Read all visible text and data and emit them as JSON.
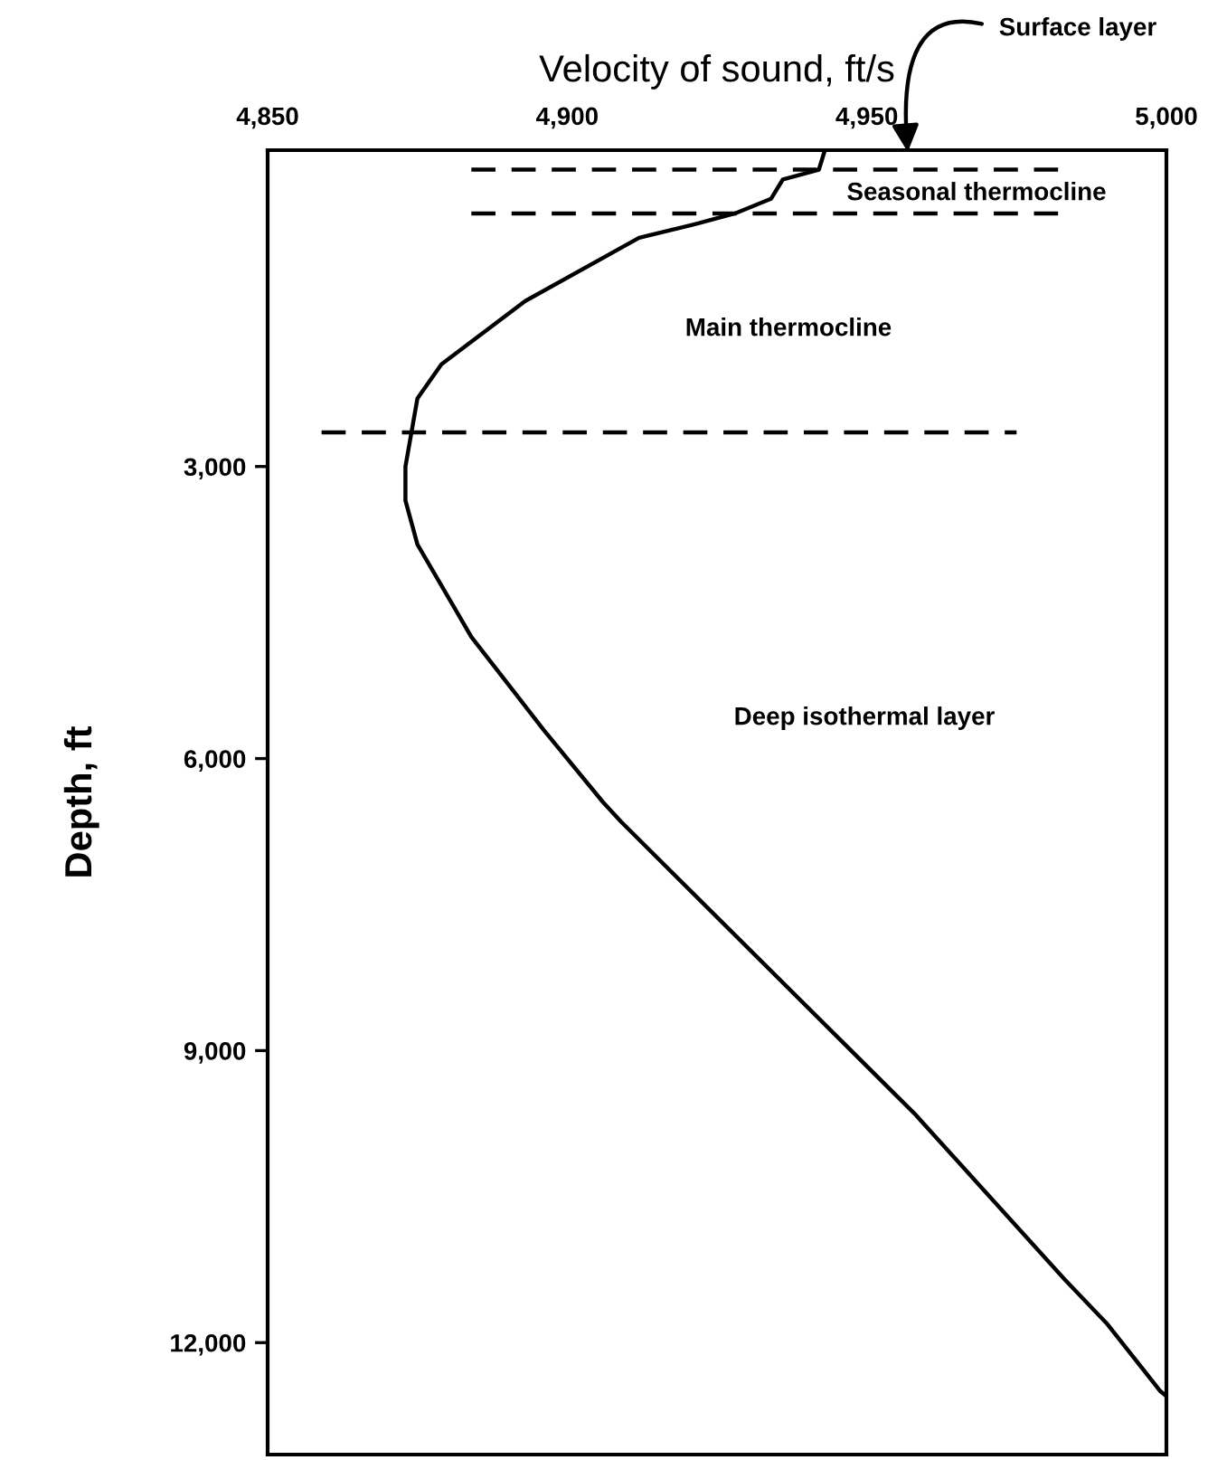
{
  "chart_data": {
    "type": "line",
    "xlabel": "Velocity of sound, ft/s",
    "ylabel": "Depth, ft",
    "series": [
      {
        "color": "#000000",
        "line_style": "solid",
        "x": [
          4943,
          4942,
          4936,
          4934,
          4928,
          4922,
          4912,
          4893,
          4879,
          4875,
          4873,
          4873,
          4875,
          4884,
          4896,
          4906,
          4909,
          4958,
          4983,
          4990,
          4999,
          5000
        ],
        "values": [
          -250,
          -50,
          50,
          250,
          400,
          500,
          650,
          1300,
          1950,
          2300,
          3000,
          3350,
          3800,
          4750,
          5700,
          6450,
          6650,
          9650,
          11350,
          11800,
          12500,
          12550
        ]
      },
      {
        "color": "#000000",
        "line_style": "dashed",
        "x": [
          4884,
          4983
        ],
        "values": [
          -50,
          -50
        ]
      },
      {
        "color": "#000000",
        "line_style": "dashed",
        "x": [
          4884,
          4983
        ],
        "values": [
          400,
          400
        ]
      },
      {
        "color": "#000000",
        "line_style": "dashed",
        "x": [
          4859,
          4975
        ],
        "values": [
          2650,
          2650
        ]
      }
    ],
    "xlim": [
      4850,
      5000
    ],
    "ylim": [
      13150,
      -250
    ],
    "xticks": [
      {
        "value": 4850,
        "label": "4,850"
      },
      {
        "value": 4900,
        "label": "4,900"
      },
      {
        "value": 4950,
        "label": "4,950"
      },
      {
        "value": 5000,
        "label": "5,000"
      }
    ],
    "yticks": [
      {
        "value": 3000,
        "label": "3,000"
      },
      {
        "value": 6000,
        "label": "6,000"
      },
      {
        "value": 9000,
        "label": "9,000"
      },
      {
        "value": 12000,
        "label": "12,000"
      }
    ],
    "annotations": [
      "Surface layer",
      "Seasonal thermocline",
      "Main thermocline",
      "Deep isothermal layer"
    ],
    "grid": false,
    "legend": false
  }
}
